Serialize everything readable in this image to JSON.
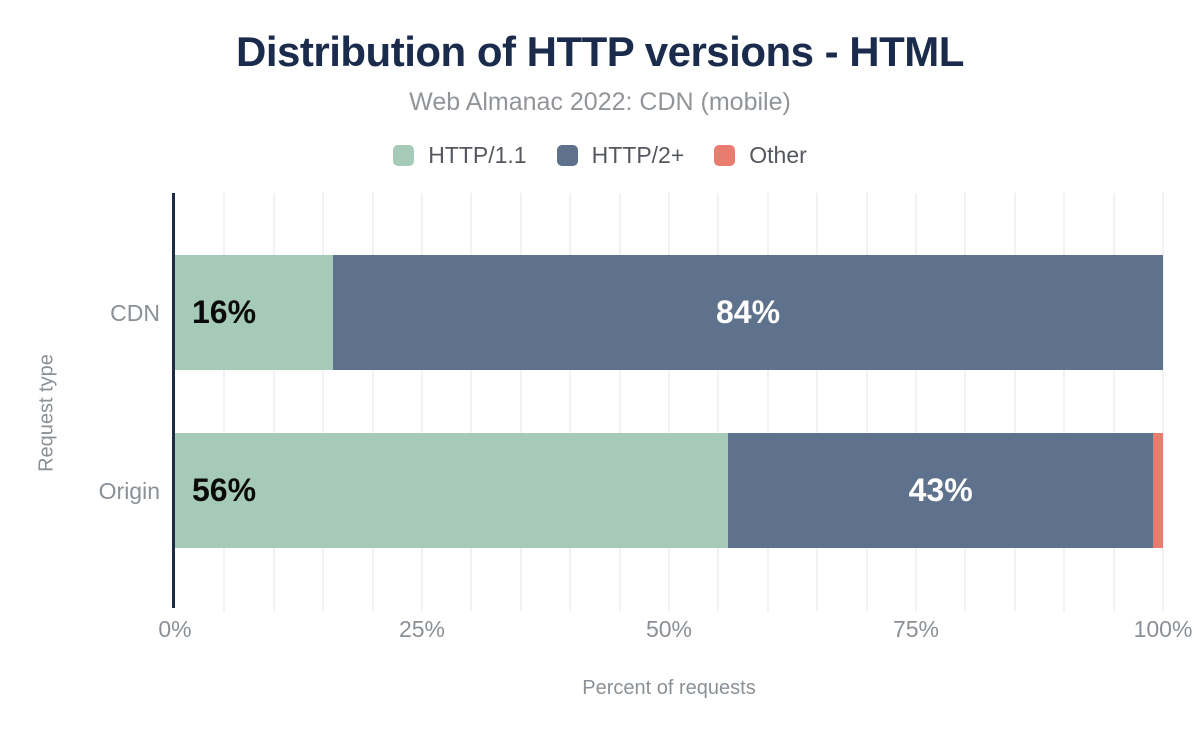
{
  "chart_data": {
    "type": "bar",
    "orientation": "horizontal-stacked",
    "title": "Distribution of HTTP versions - HTML",
    "subtitle": "Web Almanac 2022: CDN (mobile)",
    "xlabel": "Percent of requests",
    "ylabel": "Request type",
    "categories": [
      "CDN",
      "Origin"
    ],
    "series": [
      {
        "name": "HTTP/1.1",
        "color": "#a6cab8",
        "values": [
          16,
          56
        ],
        "labels": [
          "16%",
          "56%"
        ]
      },
      {
        "name": "HTTP/2+",
        "color": "#5e718d",
        "values": [
          84,
          43
        ],
        "labels": [
          "84%",
          "43%"
        ]
      },
      {
        "name": "Other",
        "color": "#e87c6e",
        "values": [
          0,
          1
        ],
        "labels": [
          "",
          ""
        ]
      }
    ],
    "xlim": [
      0,
      100
    ],
    "x_ticks": [
      "0%",
      "25%",
      "50%",
      "75%",
      "100%"
    ],
    "grid": "vertical",
    "grid_interval_pct": 5,
    "legend_position": "top"
  },
  "colors": {
    "title": "#1a2b4c",
    "axis_line": "#1d2b45",
    "tick_text": "#8b9096",
    "gridline": "#f2f2f4",
    "label_on_light": "#0a0a0a",
    "label_on_dark": "#ffffff"
  }
}
